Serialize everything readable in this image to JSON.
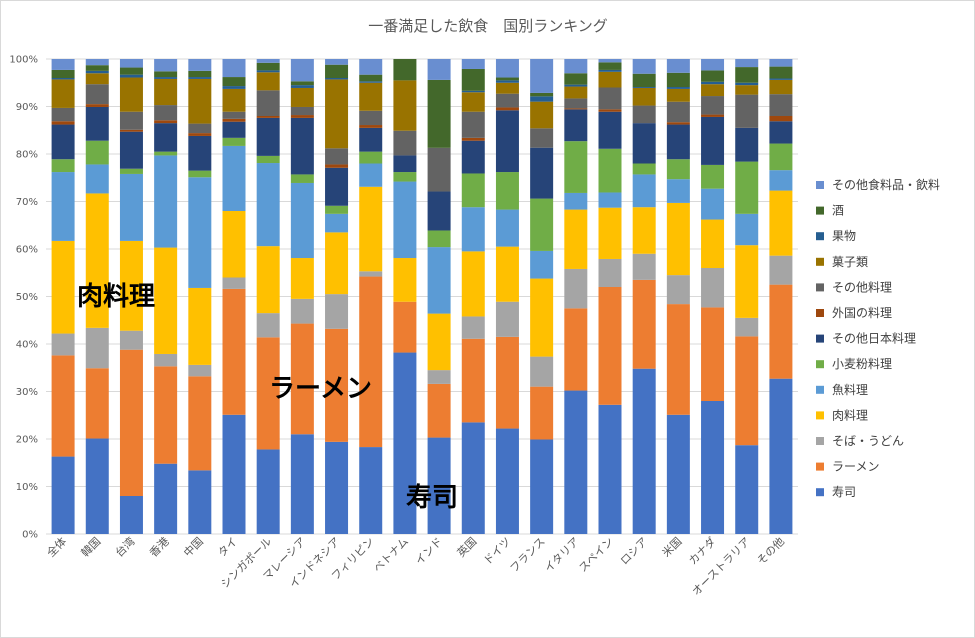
{
  "chart_data": {
    "type": "bar",
    "stacked": true,
    "normalized": true,
    "title": "一番満足した飲食　国別ランキング",
    "ylim": [
      0,
      1
    ],
    "y_ticks": [
      "0%",
      "10%",
      "20%",
      "30%",
      "40%",
      "50%",
      "60%",
      "70%",
      "80%",
      "90%",
      "100%"
    ],
    "grid": true,
    "legend_position": "right",
    "categories": [
      "全体",
      "韓国",
      "台湾",
      "香港",
      "中国",
      "タイ",
      "シンガポール",
      "マレーシア",
      "インドネシア",
      "フィリピン",
      "ベトナム",
      "インド",
      "英国",
      "ドイツ",
      "フランス",
      "イタリア",
      "スペイン",
      "ロシア",
      "米国",
      "カナダ",
      "オーストラリア",
      "その他"
    ],
    "series": [
      {
        "name": "寿司",
        "color": "#4472C4",
        "values": [
          16.3,
          20.1,
          8.0,
          14.8,
          13.4,
          25.1,
          17.8,
          21.0,
          19.4,
          18.3,
          38.2,
          20.3,
          23.5,
          22.2,
          19.5,
          30.2,
          27.2,
          34.8,
          25.1,
          28.0,
          18.7,
          32.7
        ]
      },
      {
        "name": "ラーメン",
        "color": "#ED7D31",
        "values": [
          21.3,
          14.8,
          30.8,
          20.5,
          19.8,
          26.5,
          23.6,
          23.3,
          23.8,
          35.9,
          10.7,
          11.3,
          17.6,
          19.3,
          10.9,
          17.3,
          24.8,
          18.7,
          23.3,
          19.7,
          22.9,
          19.8
        ]
      },
      {
        "name": "そば・うどん",
        "color": "#A5A5A5",
        "values": [
          4.6,
          8.5,
          4.0,
          2.6,
          2.4,
          2.4,
          5.1,
          5.2,
          7.3,
          1.1,
          0.0,
          2.9,
          4.7,
          7.4,
          6.2,
          8.3,
          5.9,
          5.5,
          6.1,
          8.3,
          3.9,
          6.1
        ]
      },
      {
        "name": "肉料理",
        "color": "#FFC000",
        "values": [
          19.5,
          28.3,
          18.9,
          22.4,
          16.2,
          14.0,
          14.1,
          8.6,
          13.0,
          17.8,
          9.2,
          11.9,
          13.7,
          11.6,
          16.1,
          12.5,
          10.8,
          9.8,
          15.2,
          10.2,
          15.3,
          13.7
        ]
      },
      {
        "name": "魚料理",
        "color": "#5B9BD5",
        "values": [
          14.5,
          6.1,
          14.1,
          19.4,
          23.3,
          13.7,
          17.5,
          15.8,
          3.9,
          4.9,
          16.1,
          14.0,
          9.3,
          7.8,
          5.7,
          3.5,
          3.2,
          6.9,
          5.0,
          6.5,
          6.6,
          4.3
        ]
      },
      {
        "name": "小麦粉料理",
        "color": "#70AD47",
        "values": [
          2.7,
          5.0,
          1.1,
          0.8,
          1.4,
          1.7,
          1.5,
          1.8,
          1.7,
          2.5,
          2.0,
          3.5,
          7.1,
          7.9,
          10.8,
          10.9,
          9.2,
          2.3,
          4.2,
          5.0,
          11.0,
          5.6
        ]
      },
      {
        "name": "その他日本料理",
        "color": "#264478",
        "values": [
          7.3,
          7.1,
          7.8,
          6.0,
          7.3,
          3.4,
          8.0,
          11.9,
          8.0,
          5.0,
          3.5,
          8.2,
          6.9,
          13.0,
          10.5,
          6.7,
          7.8,
          8.5,
          7.3,
          10.1,
          7.1,
          4.7
        ]
      },
      {
        "name": "外国の料理",
        "color": "#9E480E",
        "values": [
          0.7,
          0.6,
          0.4,
          0.6,
          0.6,
          0.6,
          0.4,
          0.6,
          0.7,
          0.6,
          0.0,
          0.0,
          0.6,
          0.6,
          0.0,
          0.2,
          0.5,
          0.0,
          0.5,
          0.5,
          0.0,
          1.1
        ]
      },
      {
        "name": "その他料理",
        "color": "#636363",
        "values": [
          2.8,
          4.2,
          3.8,
          3.2,
          2.0,
          1.5,
          5.4,
          1.7,
          3.4,
          3.0,
          5.2,
          9.2,
          5.5,
          2.9,
          4.0,
          2.1,
          4.6,
          3.7,
          4.3,
          3.9,
          7.0,
          4.6
        ]
      },
      {
        "name": "菓子類",
        "color": "#997300",
        "values": [
          6.0,
          2.3,
          7.2,
          5.5,
          9.4,
          4.8,
          3.8,
          4.0,
          14.5,
          5.9,
          10.6,
          0.0,
          4.1,
          2.3,
          5.5,
          2.5,
          3.3,
          3.7,
          2.7,
          2.5,
          2.0,
          3.0
        ]
      },
      {
        "name": "果物",
        "color": "#255E91",
        "values": [
          0.3,
          0.5,
          0.6,
          0.4,
          0.4,
          0.6,
          0.4,
          0.6,
          0.3,
          0.3,
          0.0,
          0.0,
          0.3,
          0.5,
          1.1,
          0.4,
          0.4,
          0.2,
          0.4,
          0.5,
          0.5,
          0.3
        ]
      },
      {
        "name": "酒",
        "color": "#43682B",
        "values": [
          1.7,
          1.2,
          1.5,
          1.2,
          1.3,
          1.9,
          1.6,
          0.8,
          2.8,
          1.4,
          4.5,
          14.3,
          4.6,
          0.6,
          0.7,
          2.4,
          1.6,
          2.8,
          3.0,
          2.4,
          3.3,
          2.5
        ]
      },
      {
        "name": "その他食料品・飲料",
        "color": "#698ED0",
        "values": [
          2.3,
          1.3,
          1.8,
          2.6,
          2.5,
          3.8,
          0.8,
          4.7,
          1.2,
          3.3,
          0.0,
          4.4,
          2.1,
          3.9,
          7.0,
          3.0,
          0.7,
          3.1,
          2.9,
          2.4,
          1.7,
          1.6
        ]
      }
    ],
    "annotations": [
      "肉料理",
      "ラーメン",
      "寿司"
    ]
  }
}
